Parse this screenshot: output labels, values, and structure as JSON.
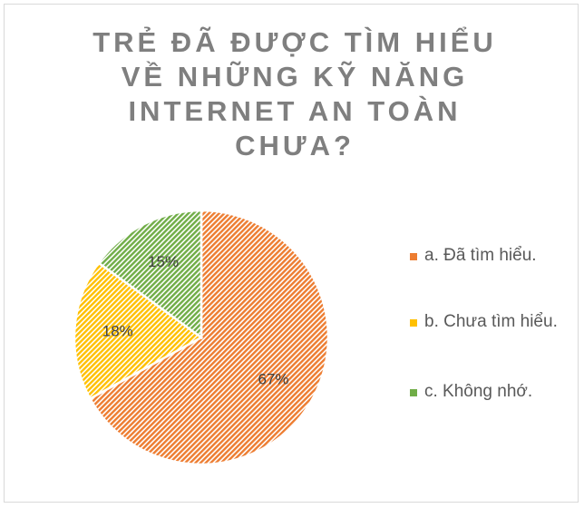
{
  "chart_data": {
    "type": "pie",
    "title": "TRẺ ĐÃ ĐƯỢC TÌM HIỂU VỀ NHỮNG KỸ NĂNG INTERNET AN TOÀN CHƯA?",
    "categories": [
      "a. Đã tìm hiểu.",
      "b. Chưa tìm hiểu.",
      "c. Không nhớ."
    ],
    "values": [
      67,
      18,
      15
    ],
    "value_labels": [
      "67%",
      "18%",
      "15%"
    ],
    "colors": [
      "#ed7d31",
      "#ffc000",
      "#70ad47"
    ]
  }
}
